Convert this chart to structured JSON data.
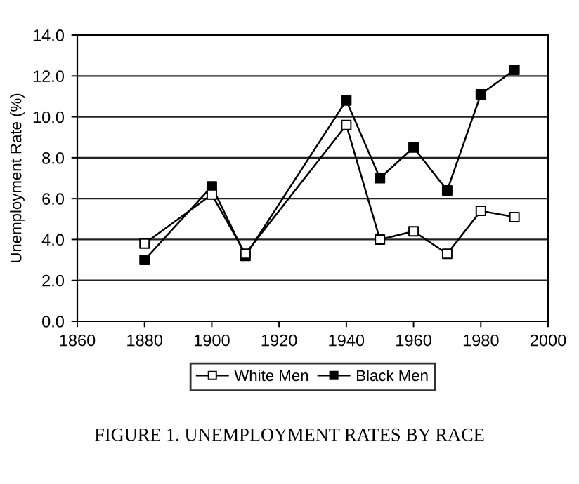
{
  "chart_data": {
    "type": "line",
    "title": "FIGURE 1. UNEMPLOYMENT RATES BY RACE",
    "ylabel": "Unemployment Rate (%)",
    "x": [
      1880,
      1900,
      1910,
      1940,
      1950,
      1960,
      1970,
      1980,
      1990
    ],
    "series": [
      {
        "name": "White Men",
        "color": "#000000",
        "colors": [
          "#ffffff",
          "#ffffff",
          "#ffffff",
          "#ffffff",
          "#ffffff",
          "#ffffff",
          "#ffffff",
          "#ffffff",
          "#ffffff"
        ],
        "values": [
          3.8,
          6.2,
          3.3,
          9.6,
          4.0,
          4.4,
          3.3,
          5.4,
          5.1
        ]
      },
      {
        "name": "Black Men",
        "color": "#000000",
        "colors": [
          "#000000",
          "#000000",
          "#000000",
          "#000000",
          "#000000",
          "#000000",
          "#000000",
          "#000000",
          "#000000"
        ],
        "values": [
          3.0,
          6.6,
          3.2,
          10.8,
          7.0,
          8.5,
          6.4,
          11.1,
          12.3
        ]
      }
    ],
    "xlim": [
      1860,
      2000
    ],
    "xticks": [
      1860,
      1880,
      1900,
      1920,
      1940,
      1960,
      1980,
      2000
    ],
    "ylim": [
      0,
      14
    ],
    "yticks": [
      {
        "value": 0,
        "label": "0.0"
      },
      {
        "value": 2,
        "label": "2.0"
      },
      {
        "value": 4,
        "label": "4.0"
      },
      {
        "value": 6,
        "label": "6.0"
      },
      {
        "value": 8,
        "label": "8.0"
      },
      {
        "value": 10,
        "label": "10.0"
      },
      {
        "value": 12,
        "label": "12.0"
      },
      {
        "value": 14,
        "label": "14.0"
      }
    ],
    "grid": "y",
    "legend": "bottom",
    "marker": "square",
    "line_style": "solid"
  }
}
